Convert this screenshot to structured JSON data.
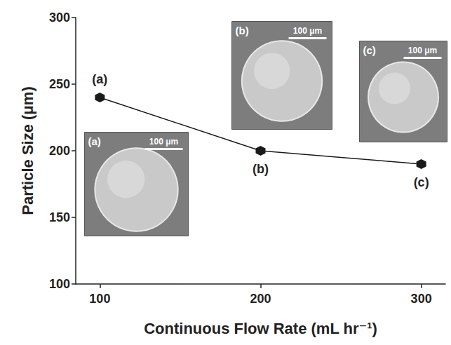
{
  "chart_data": {
    "type": "line",
    "x": [
      100,
      200,
      300
    ],
    "values": [
      240,
      200,
      190
    ],
    "xlabel": "Continuous Flow Rate (mL hr⁻¹)",
    "ylabel": "Particle Size (μm)",
    "xlim": [
      85,
      315
    ],
    "xticks": [
      100,
      200,
      300
    ],
    "ylim": [
      100,
      300
    ],
    "yticks": [
      100,
      150,
      200,
      250,
      300
    ],
    "grid": false,
    "color": "#1a1a1a",
    "marker": "hexagon",
    "line_style": "solid",
    "annotations": [
      "(a)",
      "(b)",
      "(c)"
    ],
    "insets": [
      {
        "label": "(a)",
        "scale_bar": "100 μm"
      },
      {
        "label": "(b)",
        "scale_bar": "100 μm"
      },
      {
        "label": "(c)",
        "scale_bar": "100 μm"
      }
    ]
  }
}
